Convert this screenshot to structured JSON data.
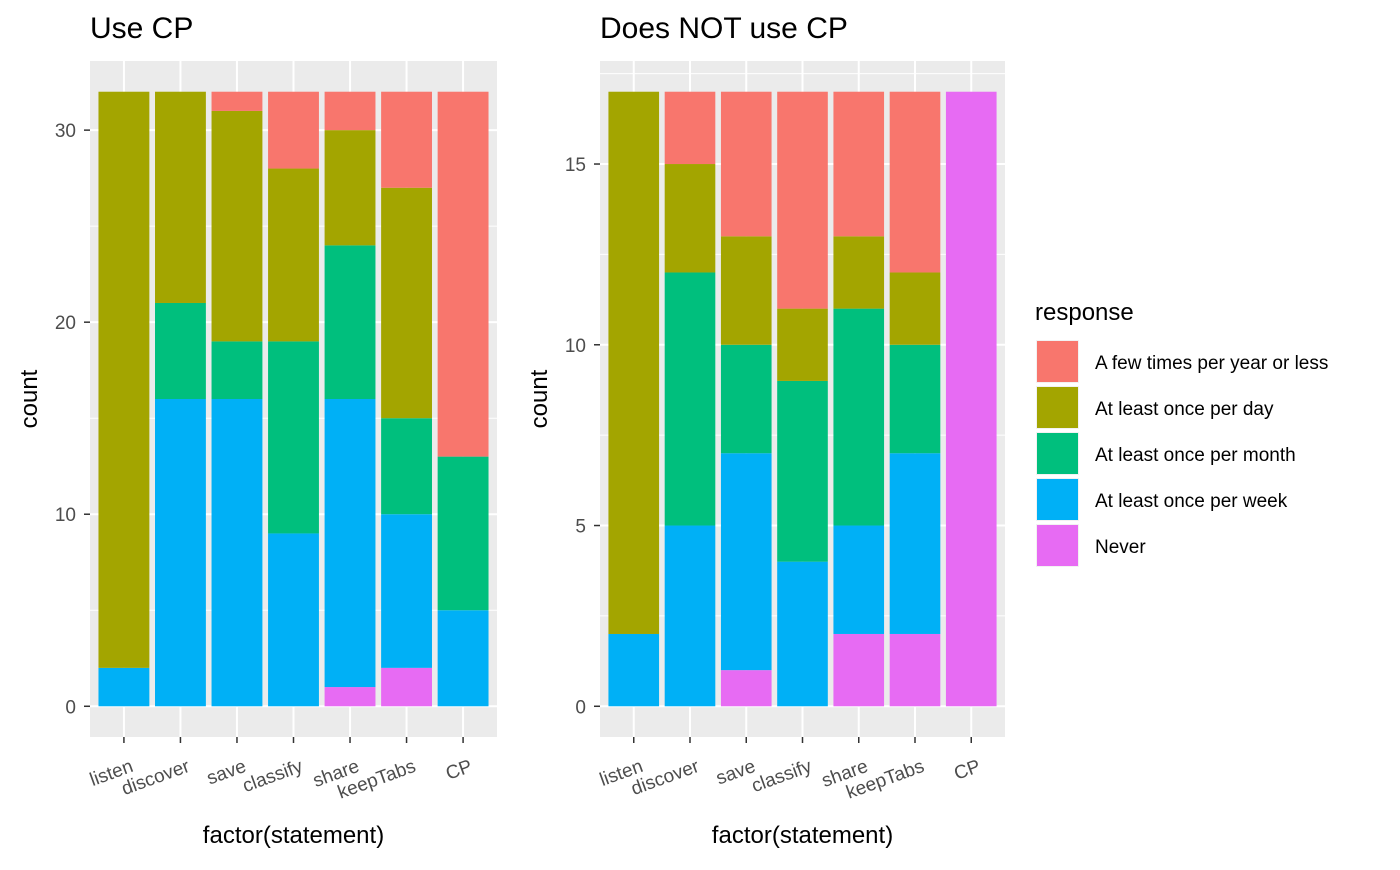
{
  "chart_data": [
    {
      "type": "bar",
      "stacked": true,
      "title": "Use CP",
      "xlabel": "factor(statement)",
      "ylabel": "count",
      "categories": [
        "listen",
        "discover",
        "save",
        "classify",
        "share",
        "keepTabs",
        "CP"
      ],
      "ylim": [
        -1.6,
        33.6
      ],
      "yticks": [
        0,
        10,
        20,
        30
      ],
      "grid": true,
      "series": [
        {
          "name": "Never",
          "values": [
            0,
            0,
            0,
            0,
            1,
            2,
            0
          ]
        },
        {
          "name": "At least once per week",
          "values": [
            2,
            16,
            16,
            9,
            15,
            8,
            5
          ]
        },
        {
          "name": "At least once per month",
          "values": [
            0,
            5,
            3,
            10,
            8,
            5,
            8
          ]
        },
        {
          "name": "At least once per day",
          "values": [
            30,
            11,
            12,
            9,
            6,
            12,
            0
          ]
        },
        {
          "name": "A few times per year or less",
          "values": [
            0,
            0,
            1,
            4,
            2,
            5,
            19
          ]
        }
      ]
    },
    {
      "type": "bar",
      "stacked": true,
      "title": "Does NOT use CP",
      "xlabel": "factor(statement)",
      "ylabel": "count",
      "categories": [
        "listen",
        "discover",
        "save",
        "classify",
        "share",
        "keepTabs",
        "CP"
      ],
      "ylim": [
        -0.85,
        17.85
      ],
      "yticks": [
        0,
        5,
        10,
        15
      ],
      "grid": true,
      "series": [
        {
          "name": "Never",
          "values": [
            0,
            0,
            1,
            0,
            2,
            2,
            17
          ]
        },
        {
          "name": "At least once per week",
          "values": [
            2,
            5,
            6,
            4,
            3,
            5,
            0
          ]
        },
        {
          "name": "At least once per month",
          "values": [
            0,
            7,
            3,
            5,
            6,
            3,
            0
          ]
        },
        {
          "name": "At least once per day",
          "values": [
            15,
            3,
            3,
            2,
            2,
            2,
            0
          ]
        },
        {
          "name": "A few times per year or less",
          "values": [
            0,
            2,
            4,
            6,
            4,
            5,
            0
          ]
        }
      ]
    }
  ],
  "legend": {
    "title": "response",
    "placement": "right",
    "items": [
      {
        "label": "A few times per year or less",
        "color": "#F8766D"
      },
      {
        "label": "At least once per day",
        "color": "#A3A500"
      },
      {
        "label": "At least once per month",
        "color": "#00BF7D"
      },
      {
        "label": "At least once per week",
        "color": "#00B0F6"
      },
      {
        "label": "Never",
        "color": "#E76BF3"
      }
    ]
  },
  "colors": {
    "Never": "#E76BF3",
    "At least once per week": "#00B0F6",
    "At least once per month": "#00BF7D",
    "At least once per day": "#A3A500",
    "A few times per year or less": "#F8766D"
  }
}
